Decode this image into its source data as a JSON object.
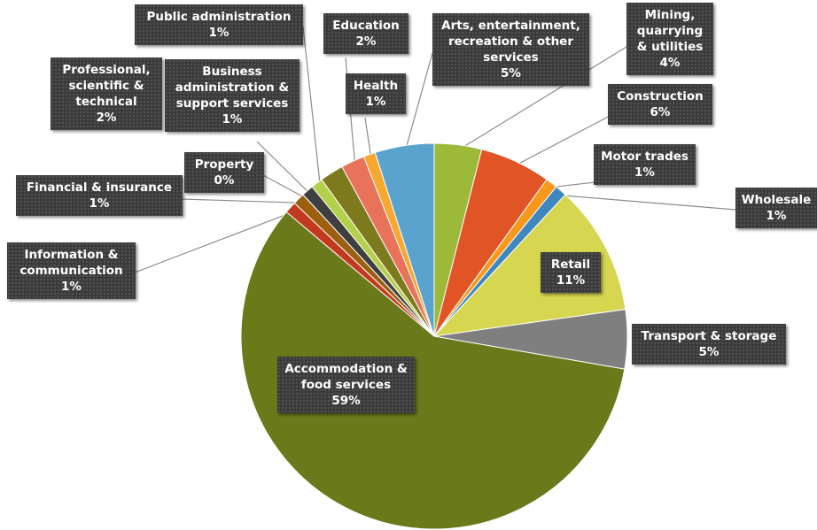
{
  "chart_data": {
    "type": "pie",
    "categories": [
      "Mining, quarrying & utilities",
      "Construction",
      "Motor trades",
      "Wholesale",
      "Retail",
      "Transport & storage",
      "Accommodation & food services",
      "Information & communication",
      "Financial & insurance",
      "Property",
      "Business administration & support services",
      "Public administration",
      "Professional, scientific & technical",
      "Education",
      "Health",
      "Arts, entertainment, recreation & other services"
    ],
    "values": [
      4,
      6,
      1,
      1,
      11,
      5,
      59,
      1,
      1,
      0,
      1,
      1,
      2,
      2,
      1,
      5
    ],
    "value_labels": [
      "4%",
      "6%",
      "1%",
      "1%",
      "11%",
      "5%",
      "59%",
      "1%",
      "1%",
      "0%",
      "1%",
      "1%",
      "2%",
      "2%",
      "1%",
      "5%"
    ],
    "colors": [
      "#9db93a",
      "#e05426",
      "#f7981d",
      "#3f87bf",
      "#d6d650",
      "#7f7f7f",
      "#6a7a1b",
      "#c23a1e",
      "#9c5f10",
      "#8a8a22",
      "#3f3f3f",
      "#b4d04b",
      "#7d7a1d",
      "#e8735a",
      "#f6a830",
      "#5ba3cf"
    ]
  }
}
